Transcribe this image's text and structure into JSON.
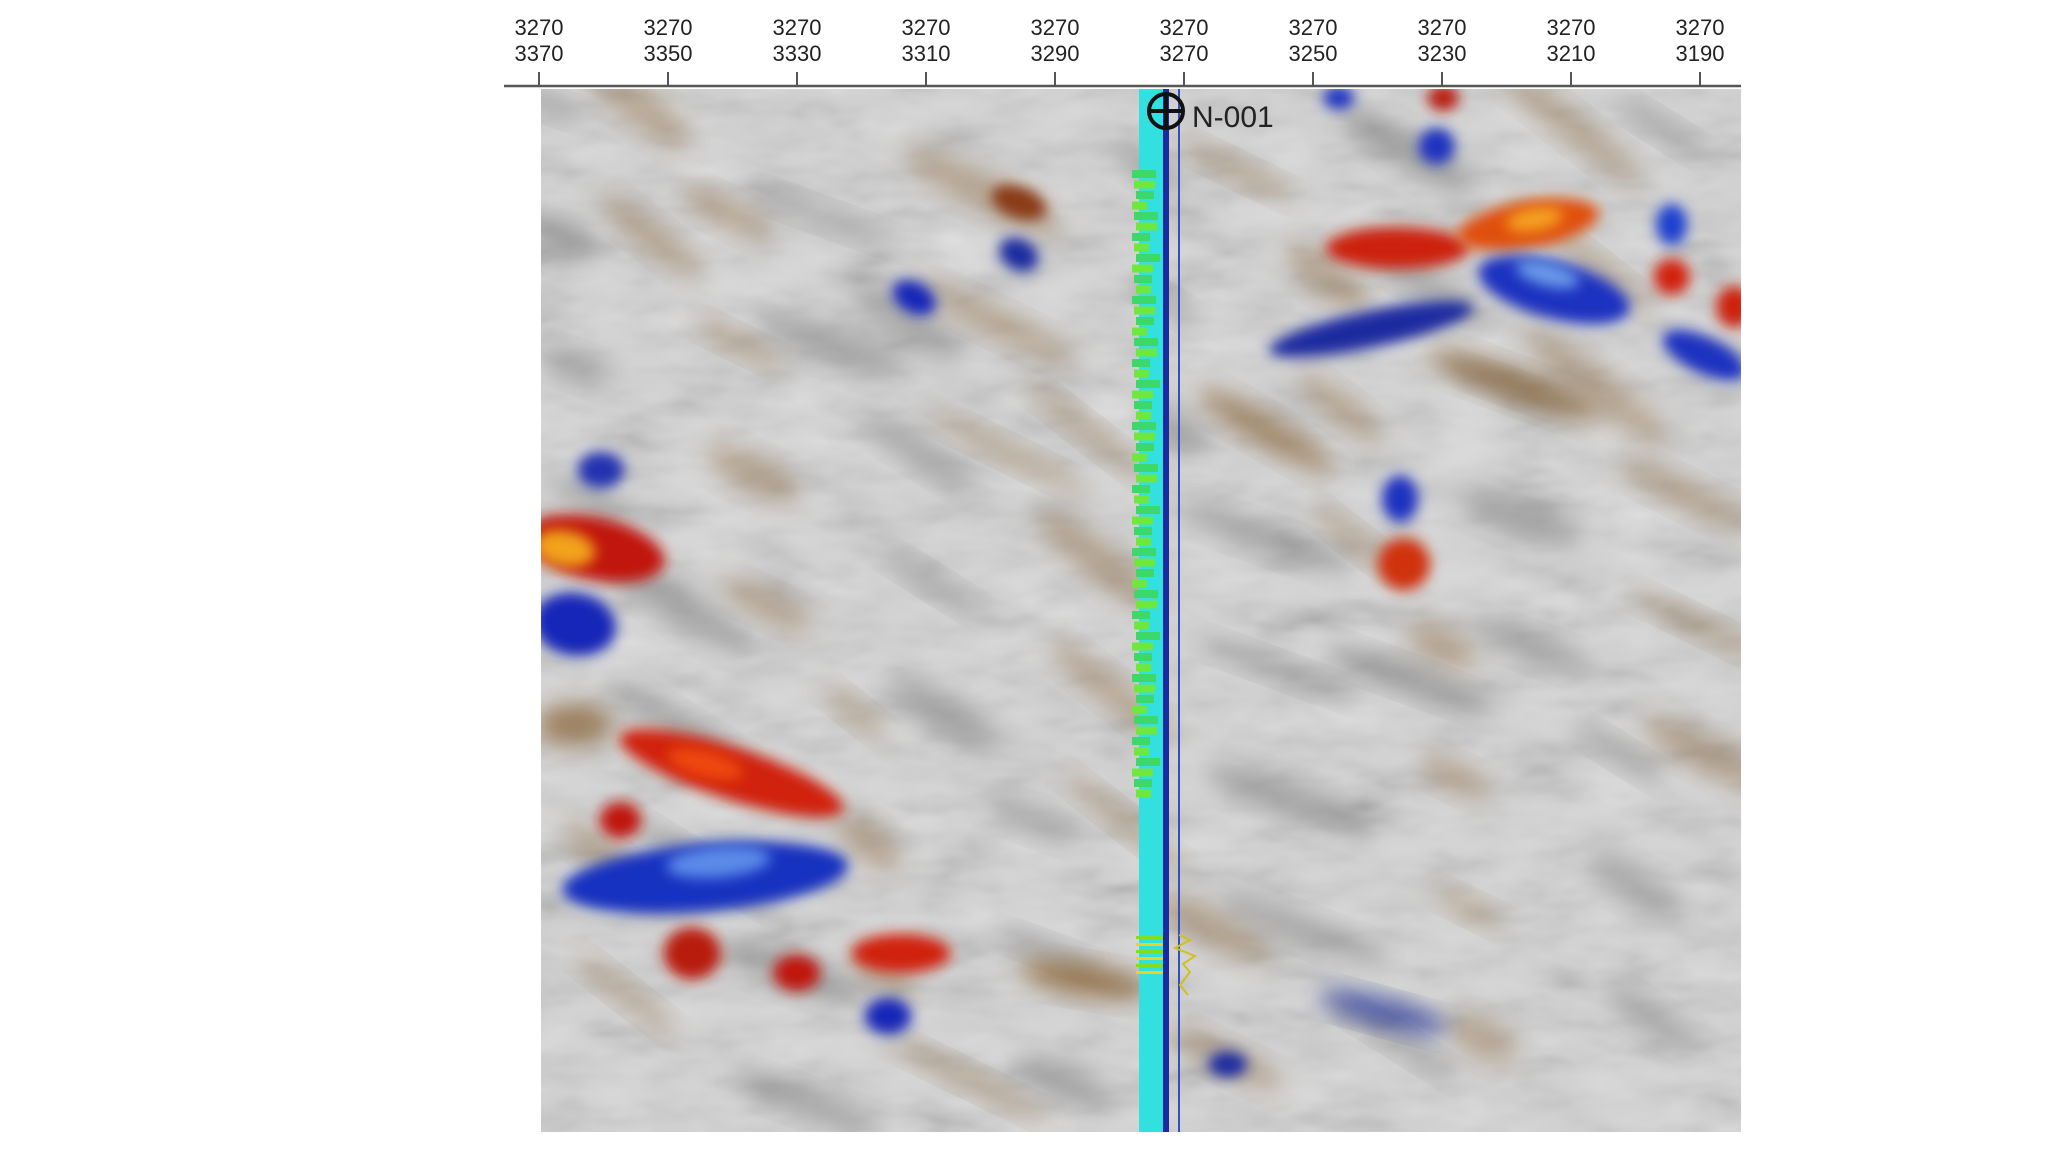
{
  "section": {
    "ticks": [
      {
        "inline": "3270",
        "crossline": "3370"
      },
      {
        "inline": "3270",
        "crossline": "3350"
      },
      {
        "inline": "3270",
        "crossline": "3330"
      },
      {
        "inline": "3270",
        "crossline": "3310"
      },
      {
        "inline": "3270",
        "crossline": "3290"
      },
      {
        "inline": "3270",
        "crossline": "3270"
      },
      {
        "inline": "3270",
        "crossline": "3250"
      },
      {
        "inline": "3270",
        "crossline": "3230"
      },
      {
        "inline": "3270",
        "crossline": "3210"
      },
      {
        "inline": "3270",
        "crossline": "3190"
      }
    ],
    "well": {
      "label": "N-001"
    }
  }
}
